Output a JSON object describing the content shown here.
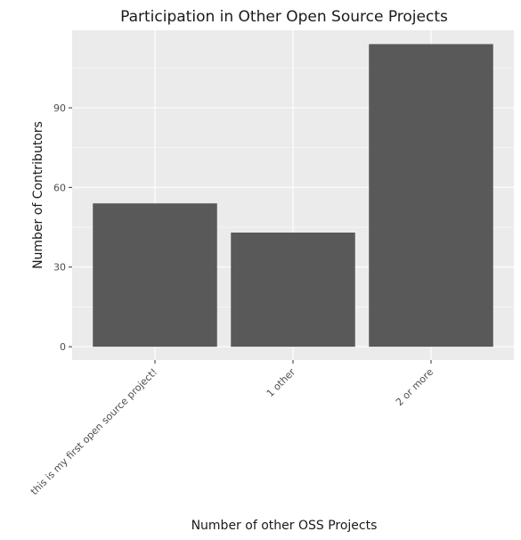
{
  "chart_data": {
    "type": "bar",
    "title": "Participation in Other Open Source Projects",
    "xlabel": "Number of other OSS Projects",
    "ylabel": "Number of Contributors",
    "categories": [
      "this is my first open source project!",
      "1 other",
      "2 or more"
    ],
    "values": [
      54,
      43,
      114
    ],
    "ylim": [
      -5,
      119.2
    ],
    "yticks": [
      0,
      30,
      60,
      90
    ],
    "grid": true,
    "legend": "none",
    "colors": {
      "panel_background": "#EBEBEB",
      "grid": "#FFFFFF",
      "bar_fill": "#595959",
      "text": "#1A1A1A",
      "tick_text": "#4D4D4D",
      "tick_mark": "#333333"
    }
  }
}
